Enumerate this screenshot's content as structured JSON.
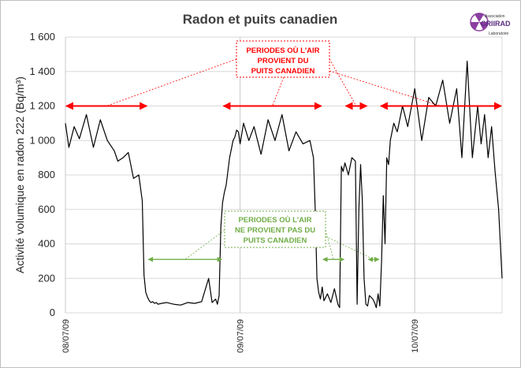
{
  "chart_data": {
    "type": "line",
    "title": "Radon et puits canadien",
    "ylabel": "Activité volumique en radon 222 (Bq/m³)",
    "xlabel": "",
    "ylim": [
      0,
      1600
    ],
    "yticks": [
      "0",
      "200",
      "400",
      "600",
      "800",
      "1 000",
      "1 200",
      "1 400",
      "1 600"
    ],
    "ytick_values": [
      0,
      200,
      400,
      600,
      800,
      1000,
      1200,
      1400,
      1600
    ],
    "xlim": [
      0,
      2.5
    ],
    "xticks": [
      {
        "label": "08/07/09",
        "x": 0
      },
      {
        "label": "09/07/09",
        "x": 1
      },
      {
        "label": "10/07/09",
        "x": 2
      }
    ],
    "grid": true,
    "series": [
      {
        "color": "#000000",
        "x": [
          0,
          0.02,
          0.05,
          0.08,
          0.12,
          0.16,
          0.2,
          0.24,
          0.28,
          0.3,
          0.33,
          0.36,
          0.39,
          0.42,
          0.44,
          0.45,
          0.46,
          0.47,
          0.48,
          0.49,
          0.5,
          0.51,
          0.52,
          0.53,
          0.55,
          0.58,
          0.62,
          0.66,
          0.7,
          0.74,
          0.78,
          0.82,
          0.84,
          0.86,
          0.87,
          0.88,
          0.89,
          0.9,
          0.91,
          0.92,
          0.93,
          0.94,
          0.95,
          0.96,
          0.97,
          0.98,
          0.99,
          1.0,
          1.02,
          1.05,
          1.08,
          1.12,
          1.16,
          1.2,
          1.24,
          1.28,
          1.32,
          1.36,
          1.4,
          1.42,
          1.43,
          1.44,
          1.45,
          1.46,
          1.47,
          1.48,
          1.5,
          1.52,
          1.54,
          1.56,
          1.57,
          1.58,
          1.59,
          1.6,
          1.62,
          1.64,
          1.66,
          1.67,
          1.68,
          1.69,
          1.7,
          1.71,
          1.72,
          1.73,
          1.74,
          1.76,
          1.77,
          1.78,
          1.79,
          1.8,
          1.81,
          1.82,
          1.83,
          1.84,
          1.85,
          1.86,
          1.88,
          1.9,
          1.93,
          1.96,
          2.0,
          2.04,
          2.08,
          2.12,
          2.16,
          2.2,
          2.24,
          2.27,
          2.3,
          2.33,
          2.36,
          2.38,
          2.4,
          2.42,
          2.44,
          2.46,
          2.48,
          2.5
        ],
        "y": [
          1100,
          960,
          1080,
          1010,
          1150,
          960,
          1120,
          1000,
          940,
          880,
          900,
          930,
          780,
          800,
          650,
          220,
          120,
          90,
          70,
          60,
          65,
          55,
          60,
          50,
          55,
          60,
          50,
          45,
          60,
          55,
          65,
          200,
          60,
          80,
          50,
          100,
          500,
          640,
          700,
          740,
          820,
          900,
          950,
          1000,
          1020,
          1060,
          1050,
          980,
          1100,
          1000,
          1080,
          920,
          1120,
          1000,
          1150,
          940,
          1050,
          980,
          1000,
          900,
          600,
          200,
          120,
          80,
          150,
          70,
          110,
          60,
          140,
          50,
          30,
          850,
          820,
          870,
          800,
          900,
          880,
          50,
          600,
          860,
          650,
          200,
          50,
          40,
          100,
          80,
          60,
          30,
          110,
          40,
          300,
          680,
          400,
          900,
          860,
          1000,
          1100,
          1050,
          1200,
          1080,
          1300,
          1000,
          1250,
          1200,
          1350,
          1100,
          1300,
          900,
          1460,
          900,
          1200,
          980,
          1150,
          900,
          1080,
          820,
          600,
          200
        ]
      }
    ],
    "annotations": {
      "red_label_lines": [
        "PERIODES OÙ L'AIR",
        "PROVIENT DU",
        "PUITS CANADIEN"
      ],
      "green_label_lines": [
        "PERIODES OÙ L'AIR",
        "NE PROVIENT PAS DU",
        "PUITS CANADIEN"
      ],
      "red_color": "#ff0000",
      "green_color": "#70ad47",
      "red_level": 1200,
      "green_level": 310,
      "red_spans": [
        [
          0,
          0.47
        ],
        [
          0.9,
          1.47
        ],
        [
          1.6,
          1.73
        ],
        [
          1.8,
          2.5
        ]
      ],
      "green_spans": [
        [
          0.47,
          0.9
        ],
        [
          1.47,
          1.6
        ],
        [
          1.73,
          1.8
        ]
      ]
    },
    "logo": {
      "line1": "Association",
      "line2": "CRIIRAD",
      "line3": "Laboratoire",
      "color": "#8a3fa0"
    }
  }
}
